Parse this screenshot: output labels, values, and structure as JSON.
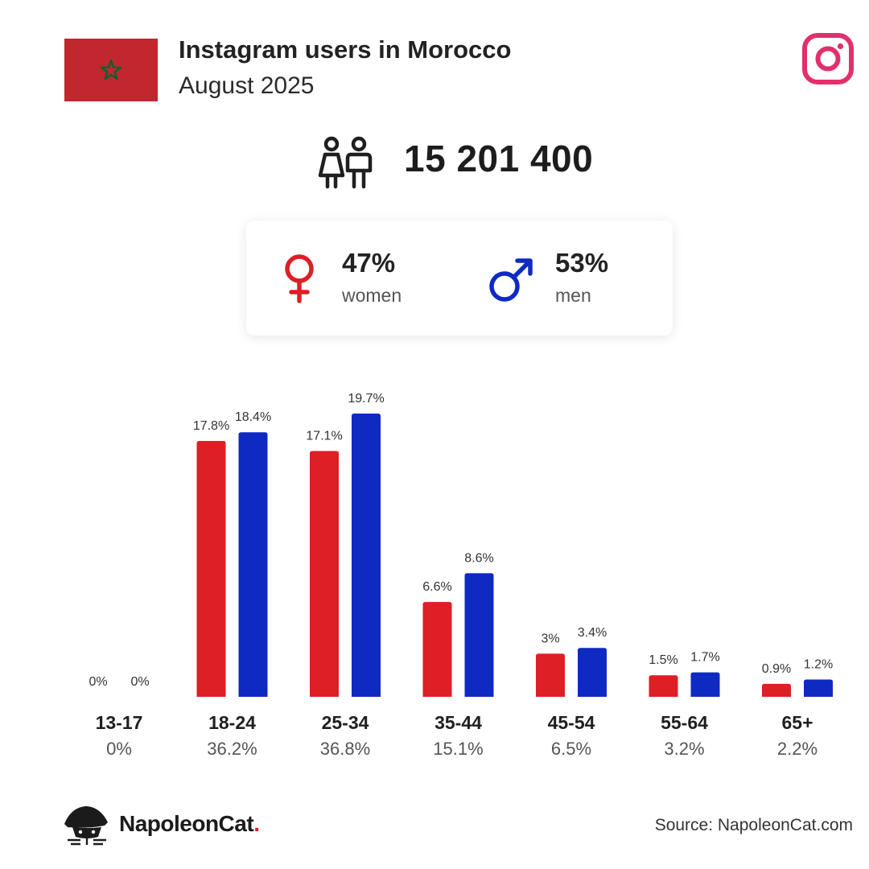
{
  "header": {
    "title": "Instagram users in Morocco",
    "subtitle": "August 2025",
    "flag_icon": "morocco-flag",
    "platform_icon": "instagram-logo"
  },
  "summary": {
    "total_users": "15 201 400",
    "women": {
      "percent": "47%",
      "label": "women",
      "icon": "female-symbol-icon"
    },
    "men": {
      "percent": "53%",
      "label": "men",
      "icon": "male-symbol-icon"
    }
  },
  "colors": {
    "women": "#dd1f26",
    "men": "#0f2ac3",
    "instagram": "#e1306c",
    "flag_red": "#c1272d",
    "flag_star": "#006233"
  },
  "chart_data": {
    "type": "bar",
    "categories": [
      "13-17",
      "18-24",
      "25-34",
      "35-44",
      "45-54",
      "55-64",
      "65+"
    ],
    "category_totals": [
      "0%",
      "36.2%",
      "36.8%",
      "15.1%",
      "6.5%",
      "3.2%",
      "2.2%"
    ],
    "series": [
      {
        "values": [
          0,
          17.8,
          17.1,
          6.6,
          3,
          1.5,
          0.9
        ],
        "labels": [
          "0%",
          "17.8%",
          "17.1%",
          "6.6%",
          "3%",
          "1.5%",
          "0.9%"
        ],
        "color": "#dd1f26"
      },
      {
        "values": [
          0,
          18.4,
          19.7,
          8.6,
          3.4,
          1.7,
          1.2
        ],
        "labels": [
          "0%",
          "18.4%",
          "19.7%",
          "8.6%",
          "3.4%",
          "1.7%",
          "1.2%"
        ],
        "color": "#0f2ac3"
      }
    ],
    "ylim": [
      0,
      19.7
    ],
    "grid": false,
    "axes_visible": false
  },
  "footer": {
    "brand": "NapoleonCat",
    "brand_dot": ".",
    "source": "Source: NapoleonCat.com"
  }
}
